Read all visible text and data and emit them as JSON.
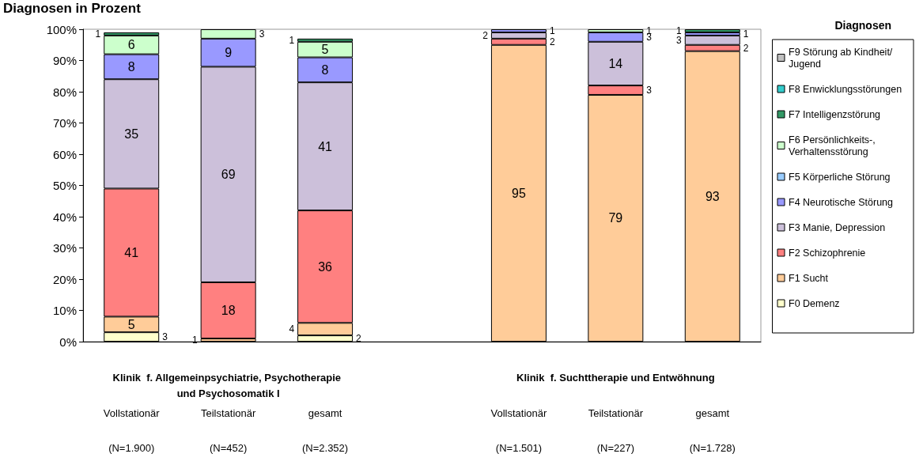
{
  "chart_data": {
    "type": "bar",
    "stacked": true,
    "title": "Diagnosen in Prozent",
    "legend_title": "Diagnosen",
    "legend": "right",
    "grid": false,
    "data_labels": true,
    "categories": [
      "Vollstationär\n(N=1.900)",
      "Teilstationär\n(N=452)",
      "gesamt\n(N=2.352)",
      null,
      "Vollstationär\n(N=1.501)",
      "Teilstationär\n(N=227)",
      "gesamt\n(N=1.728)"
    ],
    "annotations": [
      "Klinik  f. Allgemeinpsychiatrie, Psychotherapie und Psychosomatik I",
      "Klinik  f. Suchttherapie und Entwöhnung"
    ],
    "ylim": [
      0,
      100
    ],
    "yticks": [
      {
        "value": 0,
        "label": "0%"
      },
      {
        "value": 10,
        "label": "10%"
      },
      {
        "value": 20,
        "label": "20%"
      },
      {
        "value": 30,
        "label": "30%"
      },
      {
        "value": 40,
        "label": "40%"
      },
      {
        "value": 50,
        "label": "50%"
      },
      {
        "value": 60,
        "label": "60%"
      },
      {
        "value": 70,
        "label": "70%"
      },
      {
        "value": 80,
        "label": "80%"
      },
      {
        "value": 90,
        "label": "90%"
      },
      {
        "value": 100,
        "label": "100%"
      }
    ],
    "series": [
      {
        "name": "F0 Demenz",
        "color": "#ffffcc",
        "values": [
          3,
          null,
          2,
          null,
          null,
          null,
          null
        ]
      },
      {
        "name": "F1 Sucht",
        "color": "#ffcc99",
        "values": [
          5,
          1,
          4,
          null,
          95,
          79,
          93
        ]
      },
      {
        "name": "F2 Schizophrenie",
        "color": "#ff8080",
        "values": [
          41,
          18,
          36,
          null,
          2,
          3,
          2
        ]
      },
      {
        "name": "F3 Manie, Depression",
        "color": "#ccc0da",
        "values": [
          35,
          69,
          41,
          null,
          2,
          14,
          3
        ]
      },
      {
        "name": "F4 Neurotische Störung",
        "color": "#9999ff",
        "values": [
          8,
          9,
          8,
          null,
          1,
          3,
          1
        ]
      },
      {
        "name": "F5 Körperliche Störung",
        "color": "#99ccff",
        "values": [
          null,
          null,
          null,
          null,
          null,
          null,
          null
        ]
      },
      {
        "name": "F6 Persönlichkeits-, Verhaltensstörung",
        "color": "#ccffcc",
        "values": [
          6,
          3,
          5,
          null,
          null,
          1,
          null
        ]
      },
      {
        "name": "F7 Intelligenzstörung",
        "color": "#339966",
        "values": [
          1,
          null,
          1,
          null,
          null,
          null,
          1
        ]
      },
      {
        "name": "F8 Enwicklungsstörungen",
        "color": "#33cccc",
        "values": [
          null,
          null,
          null,
          null,
          null,
          null,
          null
        ]
      },
      {
        "name": "F9 Störung ab Kindheit/Jugend",
        "color": "#c0c0c0",
        "values": [
          null,
          null,
          null,
          null,
          null,
          null,
          null
        ]
      }
    ]
  }
}
